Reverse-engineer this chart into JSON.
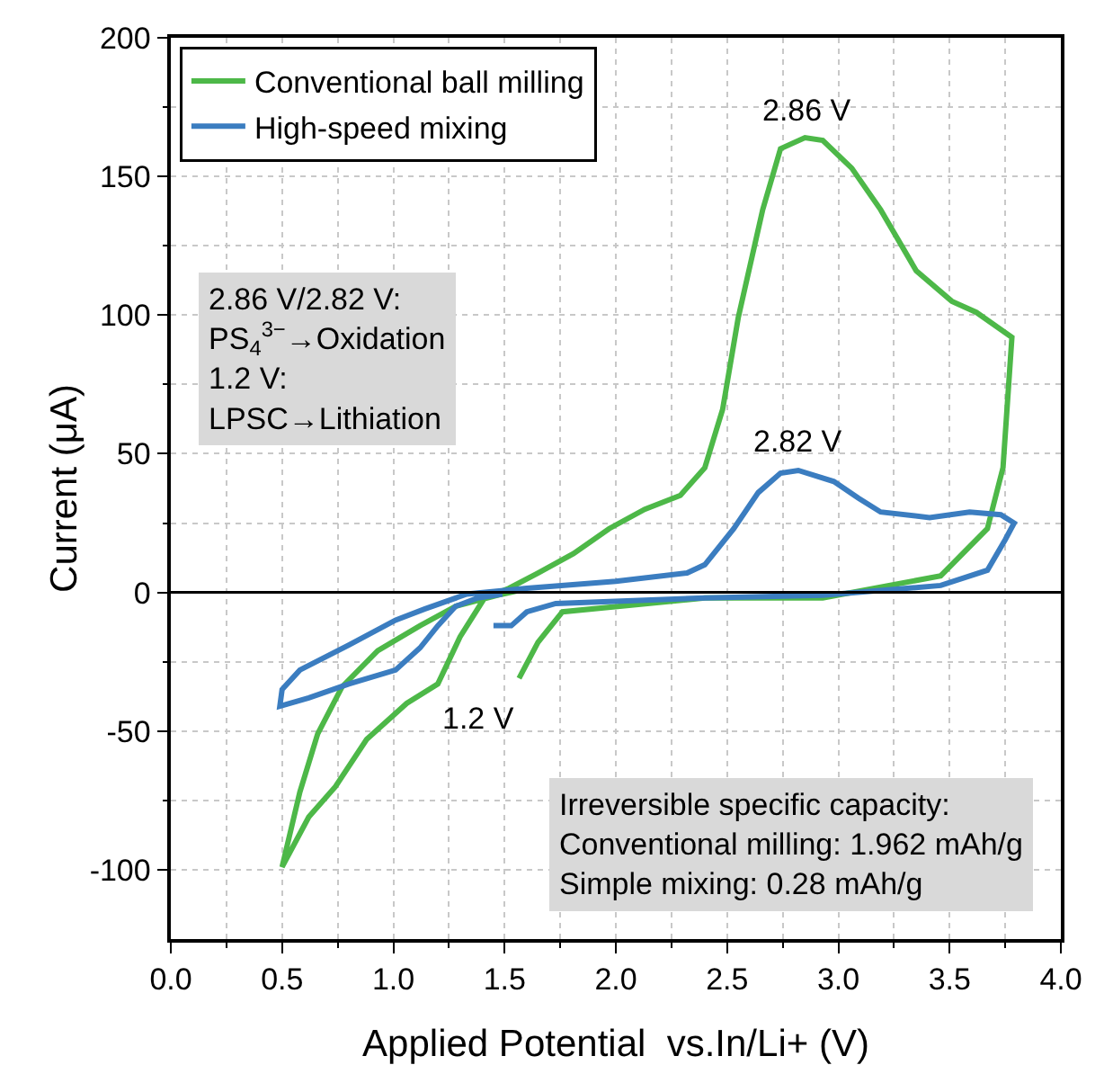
{
  "chart_data": {
    "type": "line",
    "xlabel": "Applied Potential  vs.In/Li+ (V)",
    "ylabel": "Current (μA)",
    "xlim": [
      0,
      4
    ],
    "ylim": [
      -125,
      200
    ],
    "xticks": [
      {
        "value": 0,
        "label": "0.0"
      },
      {
        "value": 0.5,
        "label": "0.5"
      },
      {
        "value": 1,
        "label": "1.0"
      },
      {
        "value": 1.5,
        "label": "1.5"
      },
      {
        "value": 2,
        "label": "2.0"
      },
      {
        "value": 2.5,
        "label": "2.5"
      },
      {
        "value": 3,
        "label": "3.0"
      },
      {
        "value": 3.5,
        "label": "3.5"
      },
      {
        "value": 4,
        "label": "4.0"
      }
    ],
    "yticks": [
      -100,
      -50,
      0,
      50,
      100,
      150,
      200
    ],
    "grid": true,
    "legend": "top left",
    "marker": "none",
    "line_style": "solid",
    "ref_lines": [
      {
        "axis": "y",
        "value": 0,
        "color": "#000000"
      }
    ],
    "series": [
      {
        "name": "Conventional ball milling",
        "color": "#4db848",
        "x": [
          1.565,
          1.65,
          1.76,
          2.4,
          2.93,
          3.46,
          3.67,
          3.74,
          3.78,
          3.62,
          3.51,
          3.35,
          3.19,
          3.06,
          2.93,
          2.85,
          2.74,
          2.66,
          2.55,
          2.48,
          2.4,
          2.29,
          2.13,
          1.97,
          1.81,
          1.65,
          1.52,
          1.41,
          1.3,
          1.2,
          1.06,
          0.88,
          0.74,
          0.62,
          0.5,
          0.58,
          0.66,
          0.77,
          0.93,
          1.12,
          1.28,
          1.49,
          1.6
        ],
        "values": [
          -31,
          -18,
          -7,
          -2,
          -2,
          6,
          23,
          45,
          92,
          101,
          105,
          116,
          138,
          153,
          163,
          164,
          160,
          138,
          99,
          66,
          45,
          35,
          30,
          23,
          14,
          7,
          1.5,
          -2,
          -16,
          -33,
          -40,
          -53,
          -70,
          -81,
          -99,
          -72,
          -51,
          -34,
          -21,
          -12,
          -5,
          -0.6,
          1.3
        ]
      },
      {
        "name": "High-speed mixing",
        "color": "#3b7dc0",
        "x": [
          1.45,
          1.53,
          1.6,
          1.73,
          2.4,
          2.93,
          3.46,
          3.67,
          3.75,
          3.79,
          3.73,
          3.59,
          3.41,
          3.19,
          3.09,
          2.98,
          2.82,
          2.74,
          2.64,
          2.53,
          2.4,
          2.32,
          2.0,
          1.6,
          1.33,
          1.14,
          1.01,
          0.8,
          0.58,
          0.5,
          0.49,
          0.62,
          0.8,
          1.01,
          1.12,
          1.2,
          1.28,
          1.38,
          1.49
        ],
        "values": [
          -12,
          -12,
          -7,
          -4,
          -2,
          -1,
          2.5,
          8,
          19,
          25,
          28,
          29,
          27,
          29,
          34,
          40,
          44,
          43,
          36,
          23,
          10,
          7,
          4,
          1.5,
          -0.6,
          -6,
          -10,
          -19,
          -28,
          -35,
          -41,
          -38,
          -33,
          -28,
          -20,
          -12,
          -5,
          -2,
          -0.6
        ]
      }
    ],
    "annotations": [
      {
        "text": "2.86 V",
        "x": 2.86,
        "y": 164
      },
      {
        "text": "2.82 V",
        "x": 2.82,
        "y": 44
      },
      {
        "text": "1.2 V",
        "x": 1.2,
        "y": -33
      },
      "2.86 V/2.82 V:\nPS$_{4}$$^{3−}$→Oxidation\n1.2 V:\nLPSC→Lithiation",
      "Irreversible specific capacity:\nConventional milling: 1.962 mAh/g\nSimple mixing: 0.28 mAh/g"
    ]
  }
}
